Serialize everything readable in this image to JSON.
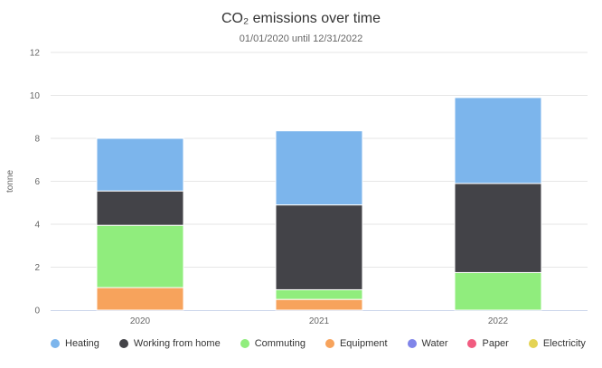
{
  "chart_data": {
    "type": "bar",
    "stacked": true,
    "title": "CO₂ emissions over time",
    "subtitle": "01/01/2020 until 12/31/2022",
    "xlabel": "",
    "ylabel": "tonne",
    "ylim": [
      0,
      12
    ],
    "yticks": [
      0,
      2,
      4,
      6,
      8,
      10,
      12
    ],
    "grid": true,
    "legend_position": "bottom",
    "categories": [
      "2020",
      "2021",
      "2022"
    ],
    "series": [
      {
        "name": "Electricity",
        "color": "#e4d354",
        "values": [
          0,
          0,
          0
        ]
      },
      {
        "name": "Paper",
        "color": "#f15c80",
        "values": [
          0,
          0,
          0
        ]
      },
      {
        "name": "Water",
        "color": "#8085e9",
        "values": [
          0,
          0,
          0
        ]
      },
      {
        "name": "Equipment",
        "color": "#f7a35c",
        "values": [
          1.05,
          0.5,
          0
        ]
      },
      {
        "name": "Commuting",
        "color": "#90ed7d",
        "values": [
          2.9,
          0.45,
          1.75
        ]
      },
      {
        "name": "Working from home",
        "color": "#434348",
        "values": [
          1.6,
          3.95,
          4.15
        ]
      },
      {
        "name": "Heating",
        "color": "#7cb5ec",
        "values": [
          2.45,
          3.45,
          4.0
        ]
      }
    ],
    "legend": [
      {
        "name": "Heating",
        "color": "#7cb5ec"
      },
      {
        "name": "Working from home",
        "color": "#434348"
      },
      {
        "name": "Commuting",
        "color": "#90ed7d"
      },
      {
        "name": "Equipment",
        "color": "#f7a35c"
      },
      {
        "name": "Water",
        "color": "#8085e9"
      },
      {
        "name": "Paper",
        "color": "#f15c80"
      },
      {
        "name": "Electricity",
        "color": "#e4d354"
      }
    ]
  }
}
